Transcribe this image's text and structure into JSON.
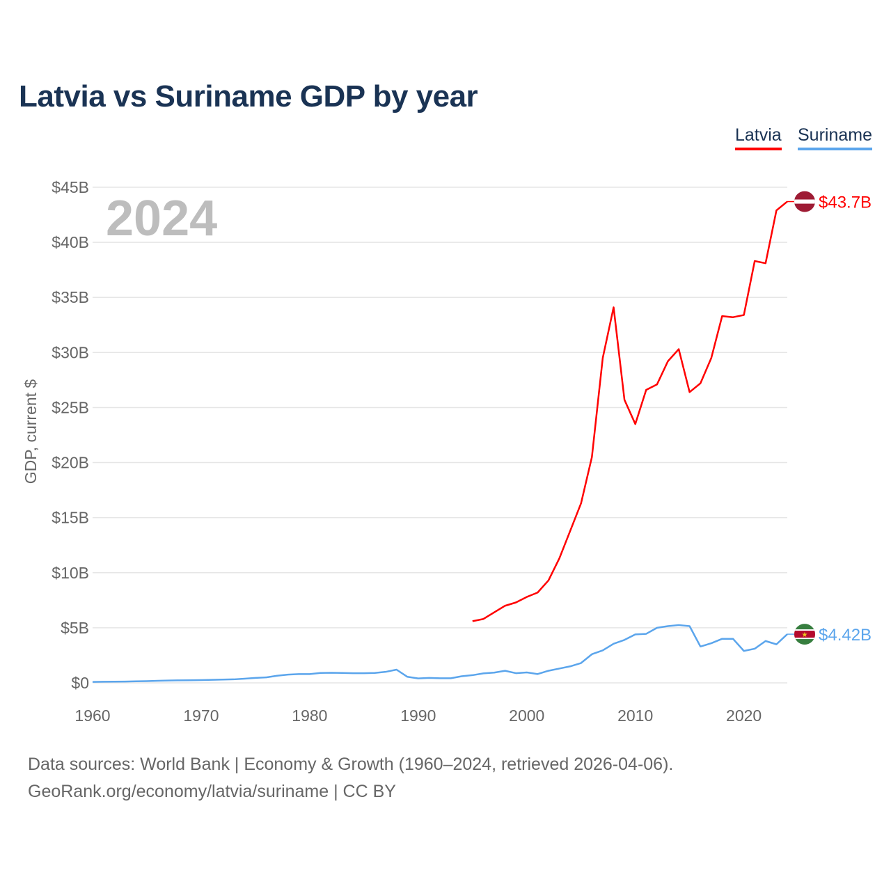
{
  "title": "Latvia vs Suriname GDP by year",
  "legend": [
    "Latvia",
    "Suriname"
  ],
  "year_watermark": "2024",
  "footer": {
    "line1": "Data sources: World Bank | Economy & Growth (1960–2024, retrieved 2026-04-06).",
    "line2": "GeoRank.org/economy/latvia/suriname | CC BY"
  },
  "chart_data": {
    "type": "line",
    "title": "Latvia vs Suriname GDP by year",
    "xlabel": "",
    "ylabel": "GDP, current $",
    "xlim": [
      1960,
      2024
    ],
    "ylim": [
      0,
      45
    ],
    "x_ticks": [
      "1960",
      "1970",
      "1980",
      "1990",
      "2000",
      "2010",
      "2020"
    ],
    "y_ticks": [
      "$0",
      "$5B",
      "$10B",
      "$15B",
      "$20B",
      "$25B",
      "$30B",
      "$35B",
      "$40B",
      "$45B"
    ],
    "grid": true,
    "legend_position": "top-right",
    "series": [
      {
        "name": "Latvia",
        "color": "#ff0000",
        "end_label": "$43.7B",
        "start_year": 1995,
        "values": [
          5.6,
          5.8,
          6.4,
          7.0,
          7.3,
          7.8,
          8.2,
          9.3,
          11.3,
          13.8,
          16.3,
          20.5,
          29.5,
          34.1,
          25.7,
          23.5,
          26.6,
          27.1,
          29.2,
          30.3,
          26.4,
          27.2,
          29.5,
          33.3,
          33.2,
          33.4,
          38.3,
          38.1,
          42.9,
          43.7
        ]
      },
      {
        "name": "Suriname",
        "color": "#5ba5ec",
        "end_label": "$4.42B",
        "start_year": 1960,
        "values": [
          0.09,
          0.1,
          0.11,
          0.12,
          0.14,
          0.16,
          0.19,
          0.21,
          0.23,
          0.24,
          0.25,
          0.28,
          0.3,
          0.32,
          0.38,
          0.45,
          0.5,
          0.65,
          0.75,
          0.8,
          0.8,
          0.9,
          0.92,
          0.9,
          0.88,
          0.88,
          0.9,
          1.0,
          1.2,
          0.55,
          0.4,
          0.45,
          0.42,
          0.42,
          0.6,
          0.7,
          0.86,
          0.93,
          1.1,
          0.88,
          0.95,
          0.8,
          1.1,
          1.3,
          1.5,
          1.8,
          2.6,
          2.95,
          3.55,
          3.9,
          4.4,
          4.45,
          5.0,
          5.15,
          5.25,
          5.15,
          3.3,
          3.6,
          4.0,
          4.0,
          2.9,
          3.1,
          3.8,
          3.5,
          4.42
        ]
      }
    ]
  }
}
